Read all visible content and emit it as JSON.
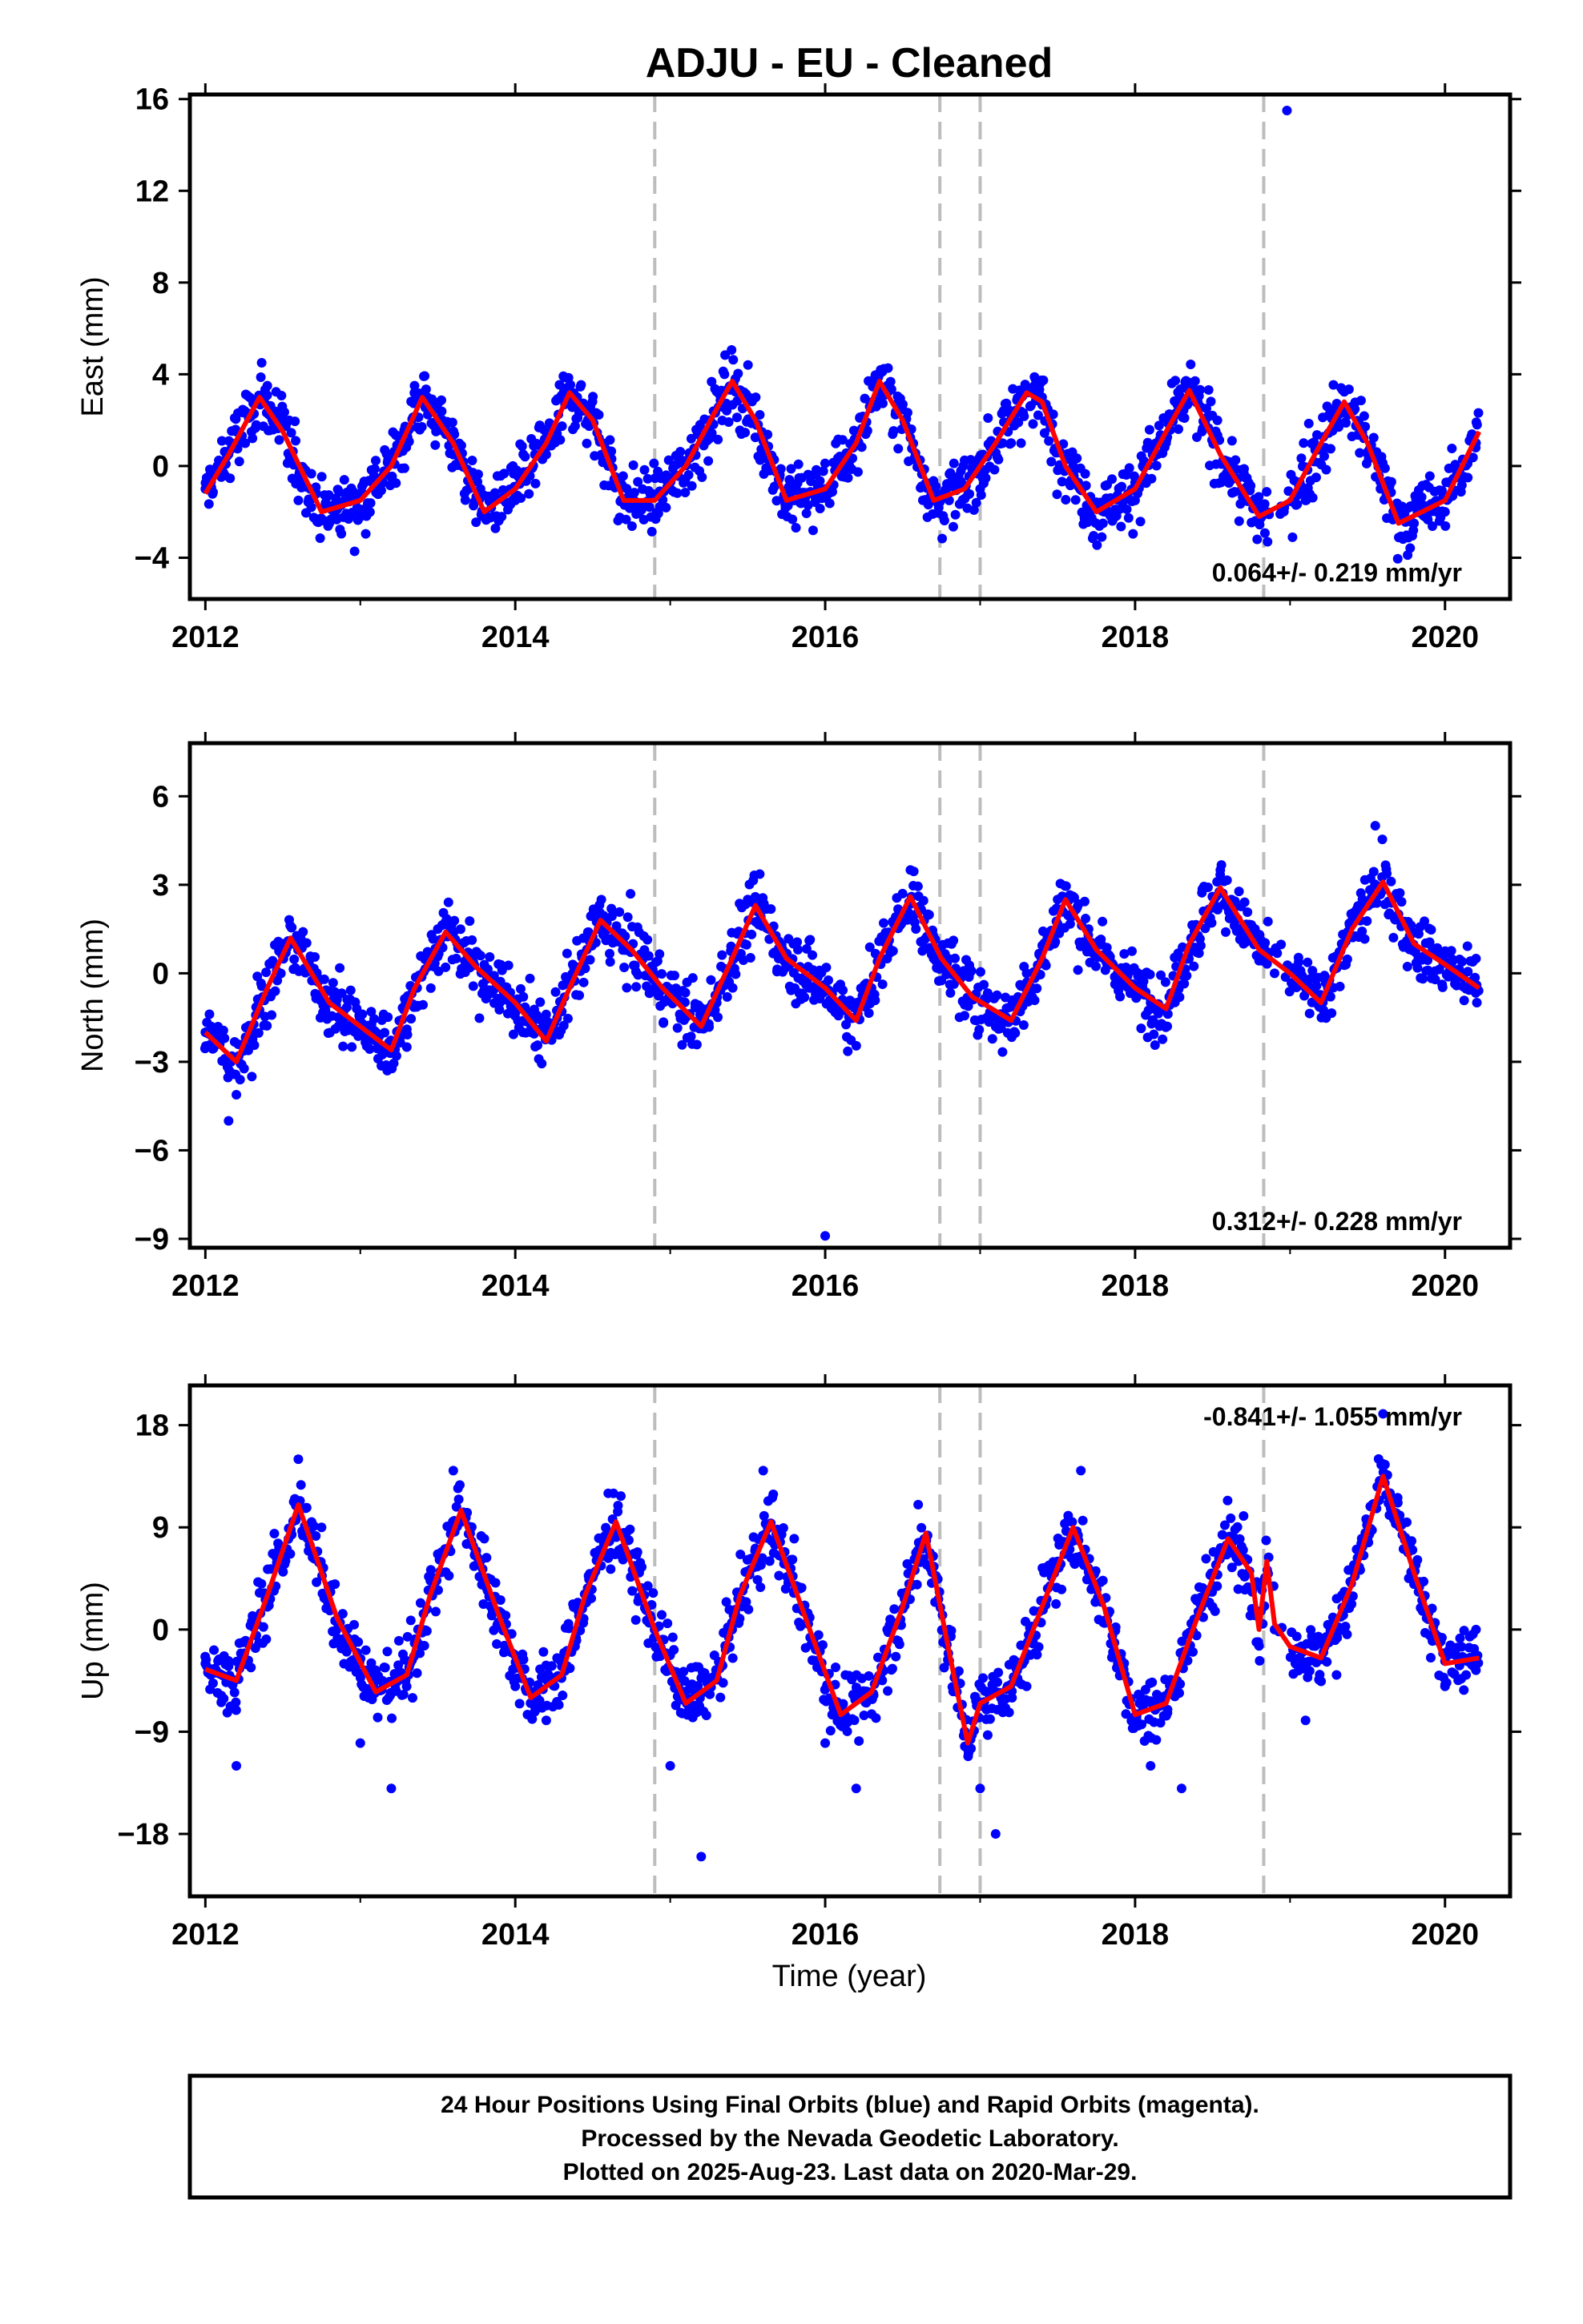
{
  "title": "ADJU  - EU - Cleaned",
  "xlabel": "Time (year)",
  "colors": {
    "points": "#0000ff",
    "fit": "#ff0000",
    "steps": "#bdbdbd",
    "frame": "#000000"
  },
  "footer": {
    "line1": "24 Hour Positions Using Final Orbits (blue) and Rapid Orbits (magenta).",
    "line2": "Processed by the Nevada Geodetic Laboratory.",
    "line3": "Plotted on 2025-Aug-23. Last data on 2020-Mar-29."
  },
  "chart_data": [
    {
      "type": "scatter",
      "ylabel": "East (mm)",
      "rate": "0.064+/- 0.219 mm/yr",
      "xlim": [
        2011.9,
        2020.42
      ],
      "ylim": [
        -5.8,
        16.2
      ],
      "xticks": [
        "2012",
        "2014",
        "2016",
        "2018",
        "2020"
      ],
      "yticks": [
        "-4",
        "0",
        "4",
        "8",
        "12",
        "16"
      ],
      "steps": [
        2014.9,
        2016.74,
        2017.0,
        2018.83
      ],
      "series": [
        {
          "kind": "points",
          "x": [
            2012.0,
            2012.2,
            2012.4,
            2012.5,
            2012.6,
            2012.8,
            2013.0,
            2013.2,
            2013.35,
            2013.4,
            2013.6,
            2013.8,
            2014.0,
            2014.2,
            2014.35,
            2014.4,
            2014.6,
            2014.8,
            2015.0,
            2015.2,
            2015.35,
            2015.4,
            2015.6,
            2015.8,
            2016.0,
            2016.2,
            2016.35,
            2016.4,
            2016.6,
            2016.8,
            2017.0,
            2017.2,
            2017.35,
            2017.4,
            2017.6,
            2017.8,
            2018.0,
            2018.2,
            2018.35,
            2018.4,
            2018.6,
            2018.8,
            2018.98,
            2019.1,
            2019.3,
            2019.4,
            2019.6,
            2019.8,
            2020.0,
            2020.2
          ],
          "y": [
            -1.0,
            1.5,
            3.5,
            2.0,
            -1.5,
            -2.5,
            -2.0,
            -0.5,
            3.5,
            3.0,
            0.5,
            -2.0,
            -1.5,
            0.5,
            3.5,
            3.0,
            0.0,
            -2.0,
            -1.0,
            1.5,
            4.0,
            3.5,
            0.5,
            -1.5,
            -1.0,
            1.0,
            4.0,
            3.5,
            0.0,
            -1.5,
            -1.0,
            1.0,
            3.5,
            3.0,
            0.0,
            -2.0,
            -1.5,
            1.0,
            3.5,
            3.0,
            -0.5,
            -2.0,
            15.5,
            -1.5,
            2.0,
            2.5,
            0.0,
            -2.5,
            -2.0,
            1.0
          ]
        },
        {
          "kind": "fit",
          "x": [
            2012.0,
            2012.15,
            2012.35,
            2012.5,
            2012.75,
            2013.0,
            2013.2,
            2013.4,
            2013.6,
            2013.8,
            2014.0,
            2014.2,
            2014.35,
            2014.5,
            2014.7,
            2014.9,
            2015.1,
            2015.3,
            2015.4,
            2015.55,
            2015.75,
            2016.0,
            2016.2,
            2016.35,
            2016.5,
            2016.7,
            2016.9,
            2017.1,
            2017.3,
            2017.4,
            2017.55,
            2017.75,
            2018.0,
            2018.2,
            2018.35,
            2018.55,
            2018.8,
            2019.0,
            2019.2,
            2019.35,
            2019.5,
            2019.7,
            2020.0,
            2020.22
          ],
          "y": [
            -1.2,
            0.5,
            3.0,
            1.5,
            -2.0,
            -1.5,
            0.0,
            3.0,
            1.0,
            -2.0,
            -1.0,
            1.0,
            3.2,
            2.0,
            -1.5,
            -1.5,
            0.0,
            2.5,
            3.7,
            2.0,
            -1.5,
            -1.0,
            1.0,
            3.7,
            2.0,
            -1.5,
            -1.0,
            1.0,
            3.2,
            2.8,
            0.0,
            -2.0,
            -1.0,
            1.5,
            3.3,
            0.5,
            -2.2,
            -1.5,
            1.0,
            2.8,
            1.0,
            -2.5,
            -1.5,
            1.5
          ]
        }
      ]
    },
    {
      "type": "scatter",
      "ylabel": "North (mm)",
      "rate": "0.312+/- 0.228 mm/yr",
      "xlim": [
        2011.9,
        2020.42
      ],
      "ylim": [
        -9.3,
        7.8
      ],
      "xticks": [
        "2012",
        "2014",
        "2016",
        "2018",
        "2020"
      ],
      "yticks": [
        "-9",
        "-6",
        "-3",
        "0",
        "3",
        "6"
      ],
      "steps": [
        2014.9,
        2016.74,
        2017.0,
        2018.83
      ],
      "series": [
        {
          "kind": "points",
          "x": [
            2012.0,
            2012.15,
            2012.3,
            2012.5,
            2012.7,
            2012.9,
            2013.1,
            2013.3,
            2013.5,
            2013.7,
            2013.9,
            2014.1,
            2014.3,
            2014.5,
            2014.7,
            2014.9,
            2015.1,
            2015.3,
            2015.5,
            2015.7,
            2015.9,
            2016.0,
            2016.2,
            2016.4,
            2016.55,
            2016.7,
            2016.9,
            2017.1,
            2017.3,
            2017.5,
            2017.7,
            2017.9,
            2018.1,
            2018.3,
            2018.55,
            2018.7,
            2018.9,
            2019.1,
            2019.3,
            2019.55,
            2019.7,
            2019.9,
            2020.1,
            2020.2
          ],
          "y": [
            -2.0,
            -5.0,
            -3.5,
            1.0,
            0.0,
            -1.5,
            -2.0,
            -2.5,
            1.5,
            0.5,
            -1.0,
            -2.0,
            -1.0,
            2.0,
            1.0,
            -0.5,
            -1.5,
            -1.0,
            2.5,
            0.5,
            -0.5,
            -8.9,
            -1.0,
            0.5,
            3.5,
            0.5,
            -1.0,
            -1.5,
            0.0,
            2.5,
            1.5,
            0.0,
            -1.0,
            0.5,
            3.5,
            1.0,
            0.0,
            -0.5,
            0.5,
            5.0,
            2.0,
            1.0,
            0.0,
            0.5
          ]
        },
        {
          "kind": "fit",
          "x": [
            2012.0,
            2012.2,
            2012.4,
            2012.55,
            2012.8,
            2013.0,
            2013.2,
            2013.35,
            2013.55,
            2013.75,
            2014.0,
            2014.2,
            2014.35,
            2014.55,
            2014.75,
            2014.95,
            2015.2,
            2015.4,
            2015.55,
            2015.75,
            2016.0,
            2016.2,
            2016.35,
            2016.55,
            2016.75,
            2016.95,
            2017.2,
            2017.4,
            2017.55,
            2017.75,
            2018.0,
            2018.2,
            2018.35,
            2018.55,
            2018.8,
            2019.0,
            2019.2,
            2019.4,
            2019.6,
            2019.8,
            2020.0,
            2020.22
          ],
          "y": [
            -2.0,
            -3.0,
            -0.5,
            1.2,
            -1.0,
            -1.8,
            -2.6,
            -0.5,
            1.4,
            0.2,
            -1.0,
            -2.3,
            -0.5,
            1.8,
            0.8,
            -0.5,
            -1.8,
            0.5,
            2.3,
            0.5,
            -0.5,
            -1.6,
            0.5,
            2.6,
            0.5,
            -0.8,
            -1.6,
            0.5,
            2.5,
            0.8,
            -0.5,
            -1.2,
            1.0,
            2.9,
            0.8,
            0.0,
            -1.0,
            1.5,
            3.1,
            1.0,
            0.3,
            -0.5
          ]
        }
      ]
    },
    {
      "type": "scatter",
      "ylabel": "Up (mm)",
      "rate": "-0.841+/- 1.055 mm/yr",
      "xlim": [
        2011.9,
        2020.42
      ],
      "ylim": [
        -23.5,
        21.5
      ],
      "xticks": [
        "2012",
        "2014",
        "2016",
        "2018",
        "2020"
      ],
      "yticks": [
        "-18",
        "-9",
        "0",
        "9",
        "18"
      ],
      "steps": [
        2014.9,
        2016.74,
        2017.0,
        2018.83
      ],
      "series": [
        {
          "kind": "points",
          "x": [
            2012.0,
            2012.2,
            2012.4,
            2012.6,
            2012.75,
            2013.0,
            2013.2,
            2013.4,
            2013.6,
            2013.8,
            2014.0,
            2014.2,
            2014.4,
            2014.6,
            2014.8,
            2015.0,
            2015.2,
            2015.4,
            2015.6,
            2015.8,
            2016.0,
            2016.2,
            2016.4,
            2016.6,
            2016.8,
            2017.0,
            2017.1,
            2017.3,
            2017.5,
            2017.65,
            2017.9,
            2018.1,
            2018.3,
            2018.5,
            2018.7,
            2018.9,
            2019.1,
            2019.3,
            2019.5,
            2019.6,
            2019.8,
            2020.0,
            2020.2
          ],
          "y": [
            -3.0,
            -12.0,
            2.0,
            15.0,
            9.0,
            -10.0,
            -14.0,
            0.0,
            14.0,
            8.0,
            -5.0,
            -8.0,
            2.0,
            12.0,
            5.0,
            -12.0,
            -20.0,
            0.0,
            14.0,
            8.0,
            -10.0,
            -14.0,
            0.0,
            11.0,
            0.0,
            -14.0,
            -18.0,
            -5.0,
            6.0,
            14.0,
            -3.0,
            -12.0,
            -14.0,
            2.0,
            10.0,
            0.0,
            -8.0,
            -4.0,
            8.0,
            19.0,
            4.0,
            -5.0,
            0.0
          ]
        },
        {
          "kind": "fit",
          "x": [
            2012.0,
            2012.2,
            2012.4,
            2012.6,
            2012.85,
            2013.1,
            2013.3,
            2013.45,
            2013.65,
            2013.9,
            2014.1,
            2014.3,
            2014.45,
            2014.65,
            2014.9,
            2015.1,
            2015.3,
            2015.45,
            2015.65,
            2015.9,
            2016.1,
            2016.3,
            2016.5,
            2016.65,
            2016.8,
            2016.92,
            2017.0,
            2017.2,
            2017.4,
            2017.6,
            2017.8,
            2018.0,
            2018.2,
            2018.4,
            2018.6,
            2018.75,
            2018.8,
            2018.85,
            2018.9,
            2019.0,
            2019.2,
            2019.4,
            2019.6,
            2019.8,
            2020.0,
            2020.22
          ],
          "y": [
            -3.5,
            -4.5,
            3.0,
            11.0,
            1.0,
            -5.5,
            -4.0,
            3.0,
            10.5,
            1.0,
            -6.0,
            -4.0,
            3.0,
            9.5,
            0.0,
            -6.5,
            -4.5,
            3.0,
            9.5,
            0.0,
            -7.5,
            -5.5,
            2.0,
            8.5,
            -2.0,
            -10.0,
            -6.5,
            -5.0,
            2.0,
            9.0,
            2.0,
            -7.5,
            -6.5,
            1.0,
            8.0,
            5.0,
            0.0,
            6.0,
            0.5,
            -1.5,
            -2.5,
            4.0,
            13.5,
            5.0,
            -3.0,
            -2.5
          ]
        }
      ]
    }
  ]
}
